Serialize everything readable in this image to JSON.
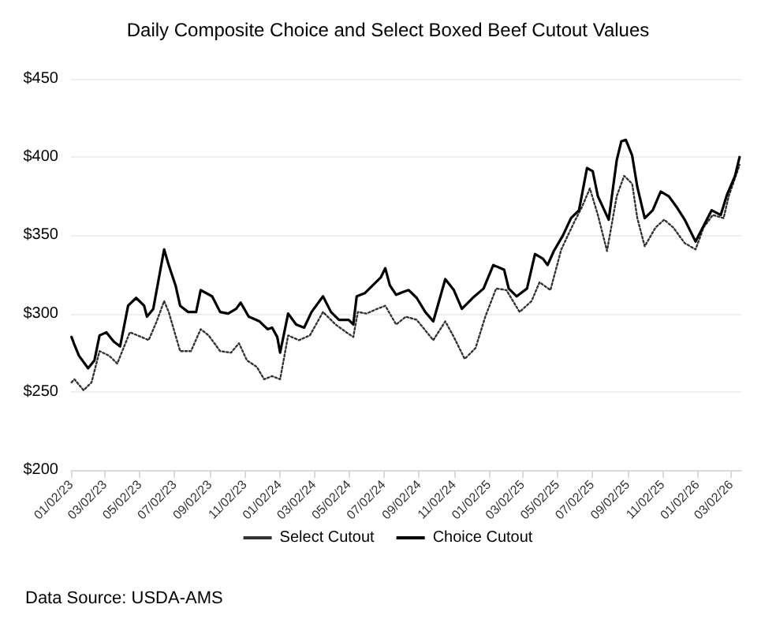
{
  "chart_data": {
    "type": "line",
    "title": "Daily Composite Choice and Select Boxed Beef Cutout Values",
    "xlim": [
      "2023-01-02",
      "2026-03-20"
    ],
    "xticks": [
      {
        "value": "2023-01-02",
        "label": "01/02/23"
      },
      {
        "value": "2023-03-02",
        "label": "03/02/23"
      },
      {
        "value": "2023-05-02",
        "label": "05/02/23"
      },
      {
        "value": "2023-07-02",
        "label": "07/02/23"
      },
      {
        "value": "2023-09-02",
        "label": "09/02/23"
      },
      {
        "value": "2023-11-02",
        "label": "11/02/23"
      },
      {
        "value": "2024-01-02",
        "label": "01/02/24"
      },
      {
        "value": "2024-03-02",
        "label": "03/02/24"
      },
      {
        "value": "2024-05-02",
        "label": "05/02/24"
      },
      {
        "value": "2024-07-02",
        "label": "07/02/24"
      },
      {
        "value": "2024-09-02",
        "label": "09/02/24"
      },
      {
        "value": "2024-11-02",
        "label": "11/02/24"
      },
      {
        "value": "2025-01-02",
        "label": "01/02/25"
      },
      {
        "value": "2025-03-02",
        "label": "03/02/25"
      },
      {
        "value": "2025-05-02",
        "label": "05/02/25"
      },
      {
        "value": "2025-07-02",
        "label": "07/02/25"
      },
      {
        "value": "2025-09-02",
        "label": "09/02/25"
      },
      {
        "value": "2025-11-02",
        "label": "11/02/25"
      },
      {
        "value": "2026-01-02",
        "label": "01/02/26"
      },
      {
        "value": "2026-03-02",
        "label": "03/02/26"
      }
    ],
    "ylim": [
      200,
      450
    ],
    "yticks": [
      {
        "value": 200,
        "label": "$200"
      },
      {
        "value": 250,
        "label": "$250"
      },
      {
        "value": 300,
        "label": "$300"
      },
      {
        "value": 350,
        "label": "$350"
      },
      {
        "value": 400,
        "label": "$400"
      },
      {
        "value": 450,
        "label": "$450"
      }
    ],
    "grid": "y",
    "legend": "bottom",
    "marker": "none",
    "annotations": [
      "Data Source: USDA-AMS"
    ],
    "series": [
      {
        "name": "Select Cutout",
        "color": "#333333",
        "line_style": "dotted",
        "x": [
          "2023-01-03",
          "2023-01-08",
          "2023-01-24",
          "2023-02-07",
          "2023-02-21",
          "2023-03-10",
          "2023-03-24",
          "2023-04-15",
          "2023-04-29",
          "2023-05-18",
          "2023-06-01",
          "2023-06-14",
          "2023-06-22",
          "2023-07-12",
          "2023-07-31",
          "2023-08-17",
          "2023-08-31",
          "2023-09-20",
          "2023-10-09",
          "2023-10-23",
          "2023-11-06",
          "2023-11-23",
          "2023-12-06",
          "2023-12-20",
          "2024-01-03",
          "2024-01-17",
          "2024-02-05",
          "2024-02-24",
          "2024-03-18",
          "2024-04-09",
          "2024-04-28",
          "2024-05-10",
          "2024-05-18",
          "2024-06-02",
          "2024-06-21",
          "2024-07-05",
          "2024-07-24",
          "2024-08-10",
          "2024-08-29",
          "2024-09-27",
          "2024-10-18",
          "2024-11-02",
          "2024-11-21",
          "2024-12-10",
          "2024-12-27",
          "2025-01-15",
          "2025-02-02",
          "2025-02-25",
          "2025-03-18",
          "2025-04-01",
          "2025-04-20",
          "2025-05-09",
          "2025-05-31",
          "2025-06-14",
          "2025-06-28",
          "2025-07-12",
          "2025-07-28",
          "2025-08-14",
          "2025-08-27",
          "2025-09-10",
          "2025-09-19",
          "2025-10-02",
          "2025-10-21",
          "2025-11-05",
          "2025-11-21",
          "2025-12-11",
          "2025-12-30",
          "2026-01-13",
          "2026-01-29",
          "2026-02-17",
          "2026-02-26",
          "2026-03-17"
        ],
        "values": [
          256,
          258,
          251,
          256,
          276,
          273,
          268,
          288,
          286,
          283,
          295,
          308,
          301,
          276,
          276,
          290,
          286,
          276,
          275,
          281,
          270,
          266,
          258,
          260,
          258,
          286,
          283,
          286,
          301,
          293,
          288,
          285,
          301,
          300,
          303,
          305,
          293,
          298,
          296,
          283,
          295,
          285,
          271,
          278,
          298,
          316,
          315,
          301,
          308,
          320,
          315,
          341,
          358,
          368,
          380,
          363,
          340,
          375,
          388,
          383,
          361,
          343,
          355,
          360,
          355,
          345,
          341,
          355,
          363,
          361,
          375,
          395
        ]
      },
      {
        "name": "Choice Cutout",
        "color": "#000000",
        "line_style": "solid",
        "x": [
          "2023-01-03",
          "2023-01-07",
          "2023-01-16",
          "2023-02-01",
          "2023-02-12",
          "2023-02-21",
          "2023-03-05",
          "2023-03-18",
          "2023-03-29",
          "2023-04-12",
          "2023-04-26",
          "2023-05-10",
          "2023-05-15",
          "2023-05-26",
          "2023-06-06",
          "2023-06-14",
          "2023-06-22",
          "2023-07-04",
          "2023-07-12",
          "2023-07-26",
          "2023-08-09",
          "2023-08-17",
          "2023-09-06",
          "2023-09-20",
          "2023-10-04",
          "2023-10-18",
          "2023-10-26",
          "2023-11-09",
          "2023-11-28",
          "2023-12-12",
          "2023-12-20",
          "2023-12-29",
          "2024-01-03",
          "2024-01-17",
          "2024-01-31",
          "2024-02-14",
          "2024-02-27",
          "2024-03-18",
          "2024-04-01",
          "2024-04-15",
          "2024-05-02",
          "2024-05-10",
          "2024-05-16",
          "2024-05-30",
          "2024-06-13",
          "2024-06-27",
          "2024-07-05",
          "2024-07-13",
          "2024-07-24",
          "2024-08-07",
          "2024-08-15",
          "2024-08-29",
          "2024-09-13",
          "2024-09-27",
          "2024-10-18",
          "2024-11-02",
          "2024-11-16",
          "2024-12-05",
          "2024-12-24",
          "2025-01-10",
          "2025-01-29",
          "2025-02-06",
          "2025-02-20",
          "2025-03-10",
          "2025-03-24",
          "2025-04-07",
          "2025-04-15",
          "2025-04-26",
          "2025-05-12",
          "2025-05-26",
          "2025-06-09",
          "2025-06-23",
          "2025-07-03",
          "2025-07-12",
          "2025-07-31",
          "2025-08-14",
          "2025-08-22",
          "2025-08-30",
          "2025-09-10",
          "2025-09-19",
          "2025-10-02",
          "2025-10-16",
          "2025-10-30",
          "2025-11-13",
          "2025-11-27",
          "2025-12-11",
          "2025-12-30",
          "2026-01-13",
          "2026-01-27",
          "2026-02-12",
          "2026-02-23",
          "2026-03-09",
          "2026-03-17"
        ],
        "values": [
          285,
          281,
          273,
          265,
          270,
          286,
          288,
          282,
          279,
          305,
          310,
          305,
          298,
          303,
          325,
          341,
          331,
          318,
          305,
          301,
          301,
          315,
          311,
          301,
          300,
          303,
          307,
          298,
          295,
          290,
          291,
          285,
          275,
          300,
          293,
          291,
          301,
          311,
          301,
          296,
          296,
          293,
          311,
          313,
          318,
          323,
          329,
          318,
          312,
          314,
          315,
          310,
          301,
          295,
          322,
          315,
          303,
          310,
          316,
          331,
          328,
          316,
          311,
          316,
          338,
          335,
          331,
          340,
          350,
          361,
          366,
          393,
          391,
          375,
          360,
          398,
          410,
          411,
          401,
          381,
          361,
          366,
          378,
          375,
          368,
          360,
          346,
          356,
          366,
          363,
          376,
          388,
          400
        ]
      }
    ]
  }
}
